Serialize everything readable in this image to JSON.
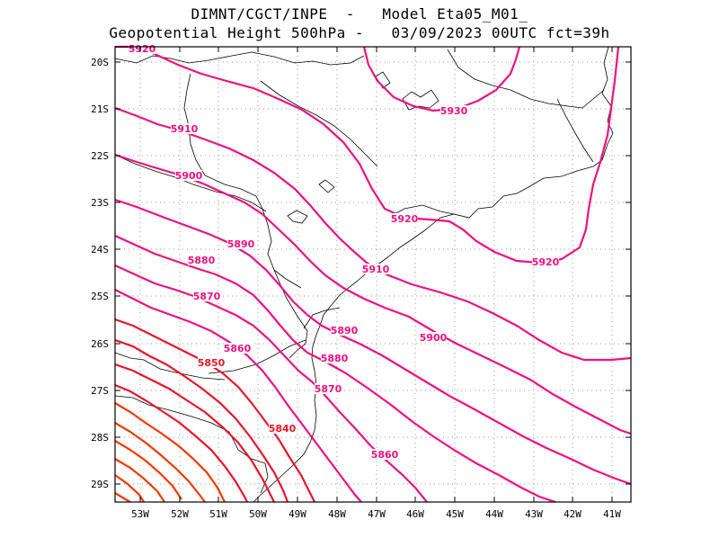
{
  "header": {
    "line1": "DIMNT/CGCT/INPE  -   Model Eta05_M01_",
    "line2": "Geopotential Height 500hPa -   03/09/2023 00UTC fct=39h"
  },
  "colors": {
    "high": "#ee1180",
    "mid": "#e6162a",
    "low": "#ee3a00",
    "coast": "#000000",
    "grid": "#999999"
  },
  "axes": {
    "lon_labels": [
      "53W",
      "52W",
      "51W",
      "50W",
      "49W",
      "48W",
      "47W",
      "46W",
      "45W",
      "44W",
      "43W",
      "42W",
      "41W"
    ],
    "lat_labels": [
      "20S",
      "21S",
      "22S",
      "23S",
      "24S",
      "25S",
      "26S",
      "27S",
      "28S",
      "29S"
    ]
  },
  "contour_labels": [
    {
      "text": "5920"
    },
    {
      "text": "5910"
    },
    {
      "text": "5900"
    },
    {
      "text": "5890"
    },
    {
      "text": "5880"
    },
    {
      "text": "5870"
    },
    {
      "text": "5860"
    },
    {
      "text": "5850"
    },
    {
      "text": "5840"
    },
    {
      "text": "5930"
    },
    {
      "text": "5920"
    },
    {
      "text": "5910"
    },
    {
      "text": "5890"
    },
    {
      "text": "5880"
    },
    {
      "text": "5870"
    },
    {
      "text": "5900"
    },
    {
      "text": "5920"
    },
    {
      "text": "5860"
    }
  ]
}
